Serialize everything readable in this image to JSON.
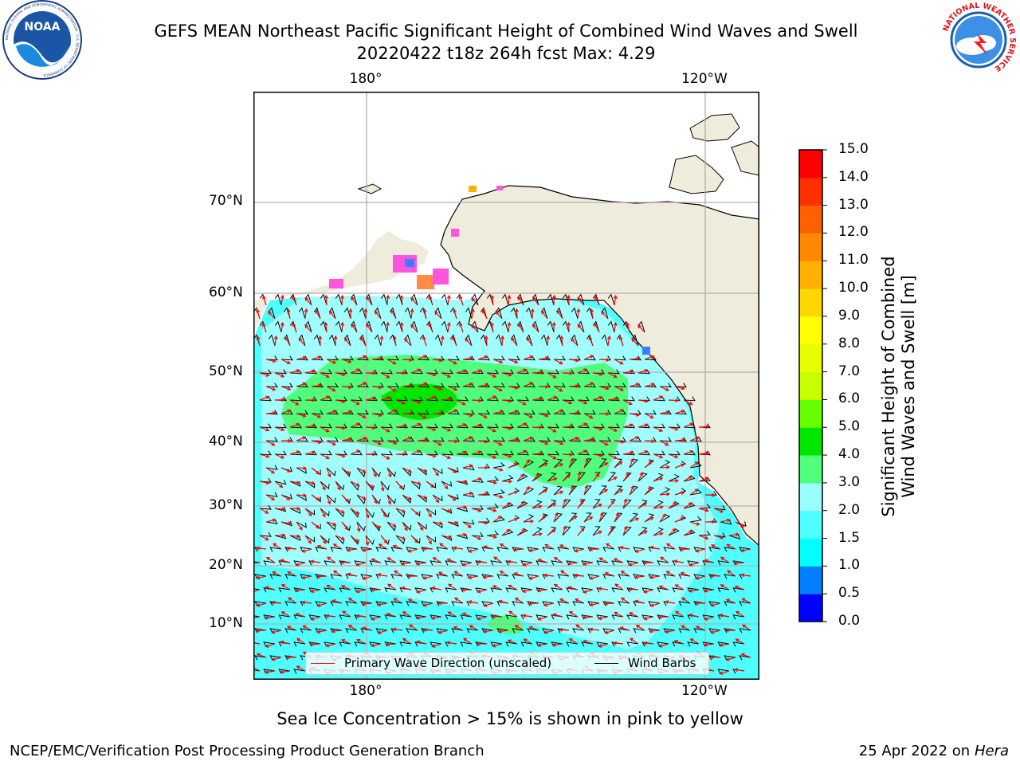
{
  "header": {
    "title_line1": "GEFS MEAN Northeast Pacific Significant Height of Combined Wind Waves and Swell",
    "title_line2": "20220422 t18z 264h fcst   Max: 4.29"
  },
  "logos": {
    "noaa": {
      "text": "NOAA",
      "ring_text": "NATIONAL OCEANIC AND ATMOSPHERIC ADMINISTRATION · U.S. DEPARTMENT OF COMMERCE"
    },
    "nws": {
      "ring_text": "NATIONAL WEATHER SERVICE"
    }
  },
  "map": {
    "lat_labels": [
      "70°N",
      "60°N",
      "50°N",
      "40°N",
      "30°N",
      "20°N",
      "10°N"
    ],
    "lon_labels_top": [
      "180°",
      "120°W"
    ],
    "lon_labels_bottom": [
      "180°",
      "120°W"
    ],
    "max_value": 4.29,
    "colors": {
      "land": "#efecdc",
      "sea_1_5_2": "#4ffefe",
      "sea_2_3": "#a0fefe",
      "sea_3_4": "#50fe7c",
      "sea_4_5": "#00e600",
      "arrows": "#ff0000",
      "barbs": "#000000",
      "grid": "#b0b0b0"
    },
    "legend": {
      "wave_label": "Primary Wave Direction (unscaled)",
      "wind_label": "Wind Barbs"
    }
  },
  "colorbar": {
    "label_line1": "Significant Height of Combined",
    "label_line2": "Wind Waves and Swell [m]",
    "ticks": [
      "0.0",
      "0.5",
      "1.0",
      "1.5",
      "2.0",
      "3.0",
      "4.0",
      "5.0",
      "6.0",
      "7.0",
      "8.0",
      "9.0",
      "10.0",
      "11.0",
      "12.0",
      "13.0",
      "14.0",
      "15.0"
    ],
    "colors": [
      "#0000ff",
      "#0080ff",
      "#00ffff",
      "#4dffff",
      "#99ffff",
      "#50ff7c",
      "#00e600",
      "#66ff00",
      "#c8ff00",
      "#e6ff00",
      "#ffff00",
      "#ffd700",
      "#ffb000",
      "#ff8800",
      "#ff6000",
      "#ff3000",
      "#ff0000"
    ]
  },
  "caption": "Sea Ice Concentration > 15% is shown in pink to yellow",
  "footer": {
    "left": "NCEP/EMC/Verification Post Processing Product Generation Branch",
    "right_date": "25 Apr 2022 on",
    "right_machine": "Hera"
  }
}
